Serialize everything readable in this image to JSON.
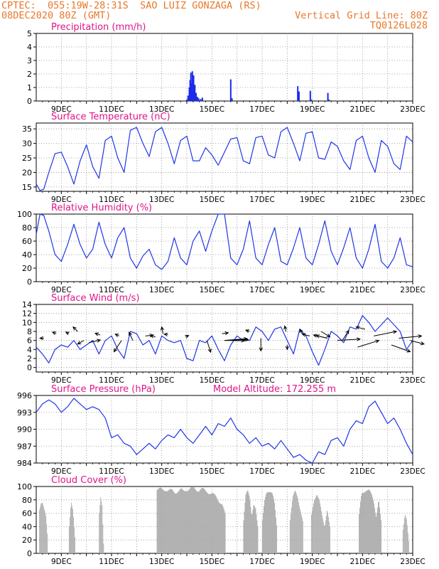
{
  "header": {
    "line1_left": "CPTEC:  055:19W-28:31S  SAO LUIZ GONZAGA (RS)",
    "line2_left": "08DEC2020 80Z (GMT)",
    "line2_right": "Vertical Grid Line: 80Z",
    "line3_right": "TQ0126L028"
  },
  "colors": {
    "header": "#e8782a",
    "title": "#e0158a",
    "line": "#2036e6",
    "bar": "#1a2ae8",
    "cloud": "#aaaaaa",
    "grid": "#888888"
  },
  "chart_data": [
    {
      "id": "precip",
      "type": "bar",
      "title": "Precipitation (mm/h)",
      "ylim": [
        0,
        5
      ],
      "yticks": [
        0,
        1,
        2,
        3,
        4,
        5
      ],
      "xticks": [
        "9DEC",
        "11DEC",
        "13DEC",
        "15DEC",
        "17DEC",
        "19DEC",
        "21DEC",
        "23DEC"
      ],
      "xlim_day": [
        8.0,
        23.0
      ],
      "x": [
        14.0,
        14.05,
        14.1,
        14.13,
        14.16,
        14.19,
        14.22,
        14.27,
        14.32,
        14.37,
        14.42,
        14.47,
        14.55,
        14.62,
        15.75,
        15.8,
        18.42,
        18.47,
        18.92,
        18.97,
        19.62,
        19.67
      ],
      "values": [
        0.1,
        0.4,
        1.0,
        1.55,
        2.1,
        1.3,
        2.2,
        1.9,
        1.2,
        0.6,
        0.3,
        0.2,
        0.15,
        0.25,
        1.6,
        0.2,
        1.1,
        0.7,
        0.75,
        0.1,
        0.6,
        0.1
      ]
    },
    {
      "id": "temp",
      "type": "line",
      "title": "Surface Temperature (nC)",
      "ylim": [
        13.5,
        37
      ],
      "yticks": [
        15,
        20,
        25,
        30,
        35
      ],
      "xticks": [
        "9DEC",
        "11DEC",
        "13DEC",
        "15DEC",
        "17DEC",
        "19DEC",
        "21DEC",
        "23DEC"
      ],
      "xlim_day": [
        8.0,
        23.0
      ],
      "x": [
        8.0,
        8.15,
        8.3,
        8.5,
        8.75,
        9.0,
        9.25,
        9.5,
        9.75,
        10.0,
        10.25,
        10.5,
        10.75,
        11.0,
        11.25,
        11.5,
        11.75,
        12.0,
        12.25,
        12.5,
        12.75,
        13.0,
        13.25,
        13.5,
        13.75,
        14.0,
        14.25,
        14.5,
        14.75,
        15.0,
        15.25,
        15.5,
        15.75,
        16.0,
        16.25,
        16.5,
        16.75,
        17.0,
        17.25,
        17.5,
        17.75,
        18.0,
        18.25,
        18.5,
        18.75,
        19.0,
        19.25,
        19.5,
        19.75,
        20.0,
        20.25,
        20.5,
        20.75,
        21.0,
        21.25,
        21.5,
        21.75,
        22.0,
        22.25,
        22.5,
        22.75,
        23.0
      ],
      "values": [
        16,
        13.8,
        14.2,
        20,
        26.5,
        27,
        22,
        16,
        24,
        29.5,
        22,
        18,
        31,
        32.5,
        25,
        20,
        34.5,
        35.5,
        30,
        25.5,
        34,
        35.5,
        30,
        23,
        31,
        32.5,
        24,
        24,
        28.5,
        26,
        22.5,
        27,
        31.5,
        32,
        24,
        23,
        32,
        32.5,
        26,
        25,
        34,
        35.5,
        30,
        24,
        33.5,
        34,
        25,
        24.5,
        30.5,
        29,
        24,
        21,
        31,
        32.5,
        25,
        20,
        31,
        29,
        23,
        21,
        32.5,
        30.5
      ]
    },
    {
      "id": "rh",
      "type": "line",
      "title": "Relative Humidity (%)",
      "ylim": [
        0,
        100
      ],
      "yticks": [
        0,
        20,
        40,
        60,
        80,
        100
      ],
      "xticks": [
        "9DEC",
        "11DEC",
        "13DEC",
        "15DEC",
        "17DEC",
        "19DEC",
        "21DEC",
        "23DEC"
      ],
      "xlim_day": [
        8.0,
        23.0
      ],
      "x": [
        8.0,
        8.15,
        8.3,
        8.5,
        8.75,
        9.0,
        9.25,
        9.5,
        9.75,
        10.0,
        10.25,
        10.5,
        10.75,
        11.0,
        11.25,
        11.5,
        11.75,
        12.0,
        12.25,
        12.5,
        12.75,
        13.0,
        13.25,
        13.5,
        13.75,
        14.0,
        14.25,
        14.5,
        14.75,
        15.0,
        15.25,
        15.5,
        15.75,
        16.0,
        16.25,
        16.5,
        16.75,
        17.0,
        17.25,
        17.5,
        17.75,
        18.0,
        18.25,
        18.5,
        18.75,
        19.0,
        19.25,
        19.5,
        19.75,
        20.0,
        20.25,
        20.5,
        20.75,
        21.0,
        21.25,
        21.5,
        21.75,
        22.0,
        22.25,
        22.5,
        22.75,
        23.0
      ],
      "values": [
        70,
        100,
        98,
        75,
        40,
        30,
        55,
        85,
        55,
        35,
        48,
        88,
        55,
        35,
        65,
        80,
        35,
        20,
        38,
        48,
        25,
        18,
        30,
        65,
        35,
        25,
        60,
        75,
        45,
        75,
        100,
        100,
        35,
        25,
        48,
        90,
        35,
        25,
        55,
        80,
        30,
        25,
        50,
        80,
        35,
        25,
        55,
        90,
        45,
        25,
        50,
        80,
        35,
        20,
        48,
        85,
        30,
        20,
        35,
        65,
        25,
        22
      ]
    },
    {
      "id": "wind",
      "type": "line",
      "title": "Surface Wind (m/s)",
      "ylim": [
        -1,
        14
      ],
      "yticks": [
        0,
        2,
        4,
        6,
        8,
        10,
        12,
        14
      ],
      "xticks": [
        "9DEC",
        "11DEC",
        "13DEC",
        "15DEC",
        "17DEC",
        "19DEC",
        "21DEC",
        "23DEC"
      ],
      "xlim_day": [
        8.0,
        23.0
      ],
      "x": [
        8.0,
        8.25,
        8.5,
        8.75,
        9.0,
        9.25,
        9.5,
        9.75,
        10.0,
        10.25,
        10.5,
        10.75,
        11.0,
        11.25,
        11.5,
        11.75,
        12.0,
        12.25,
        12.5,
        12.75,
        13.0,
        13.25,
        13.5,
        13.75,
        14.0,
        14.25,
        14.5,
        14.75,
        15.0,
        15.25,
        15.5,
        15.75,
        16.0,
        16.25,
        16.5,
        16.75,
        17.0,
        17.25,
        17.5,
        17.75,
        18.0,
        18.25,
        18.5,
        18.75,
        19.0,
        19.25,
        19.5,
        19.75,
        20.0,
        20.25,
        20.5,
        20.75,
        21.0,
        21.25,
        21.5,
        21.75,
        22.0,
        22.25,
        22.5,
        22.75,
        23.0
      ],
      "values": [
        4.5,
        3,
        1,
        4,
        5,
        4.5,
        6,
        4,
        5,
        6,
        3,
        6,
        7,
        4,
        2,
        8,
        7.5,
        5,
        6,
        3,
        7,
        6,
        5.5,
        6,
        2,
        1.5,
        6,
        5.5,
        7,
        4,
        1.5,
        5,
        7,
        6,
        6,
        9,
        8,
        6,
        8.5,
        9,
        6,
        3,
        8.5,
        7,
        3.5,
        0.5,
        4,
        8,
        7,
        5.5,
        9,
        8.5,
        11.5,
        10,
        8,
        9.5,
        11,
        9.5,
        8,
        4,
        6
      ]
    },
    {
      "id": "pressure",
      "type": "line",
      "title": "Surface Pressure (hPa)",
      "annotation": "Model Altitude: 172.255 m",
      "ylim": [
        984,
        996
      ],
      "yticks": [
        984,
        987,
        990,
        993,
        996
      ],
      "xticks": [
        "9DEC",
        "11DEC",
        "13DEC",
        "15DEC",
        "17DEC",
        "19DEC",
        "21DEC",
        "23DEC"
      ],
      "xlim_day": [
        8.0,
        23.0
      ],
      "x": [
        8.0,
        8.25,
        8.5,
        8.75,
        9.0,
        9.25,
        9.5,
        9.75,
        10.0,
        10.25,
        10.5,
        10.75,
        11.0,
        11.25,
        11.5,
        11.75,
        12.0,
        12.25,
        12.5,
        12.75,
        13.0,
        13.25,
        13.5,
        13.75,
        14.0,
        14.25,
        14.5,
        14.75,
        15.0,
        15.25,
        15.5,
        15.75,
        16.0,
        16.25,
        16.5,
        16.75,
        17.0,
        17.25,
        17.5,
        17.75,
        18.0,
        18.25,
        18.5,
        18.75,
        19.0,
        19.25,
        19.5,
        19.75,
        20.0,
        20.25,
        20.5,
        20.75,
        21.0,
        21.25,
        21.5,
        21.75,
        22.0,
        22.25,
        22.5,
        22.75,
        23.0
      ],
      "values": [
        993,
        994.5,
        995.2,
        994.5,
        993,
        994,
        995.5,
        994.5,
        993.5,
        994,
        993.5,
        992,
        988.5,
        989,
        987.5,
        987,
        985.5,
        986.5,
        987.5,
        986.5,
        988,
        989,
        988.5,
        990,
        988.5,
        987.5,
        989,
        990.5,
        989,
        991,
        990.5,
        992,
        990,
        989,
        987.5,
        988.5,
        987,
        987.5,
        986.5,
        988,
        986.5,
        985,
        985.5,
        984.5,
        984,
        986,
        985.5,
        988,
        988.5,
        987,
        990,
        991.5,
        991,
        994,
        995,
        993,
        991,
        992,
        990,
        987.5,
        985.5
      ]
    },
    {
      "id": "cloud",
      "type": "bar",
      "title": "Cloud Cover (%)",
      "ylim": [
        0,
        100
      ],
      "yticks": [
        0,
        20,
        40,
        60,
        80,
        100
      ],
      "xticks": [
        "9DEC",
        "11DEC",
        "13DEC",
        "15DEC",
        "17DEC",
        "19DEC",
        "21DEC",
        "23DEC"
      ],
      "xlim_day": [
        8.0,
        23.0
      ],
      "segments": [
        {
          "from": 8.12,
          "to": 8.45,
          "values": [
            70,
            80,
            82,
            75,
            65,
            55,
            30
          ]
        },
        {
          "from": 9.3,
          "to": 9.55,
          "values": [
            40,
            80,
            70,
            30
          ]
        },
        {
          "from": 10.5,
          "to": 10.7,
          "values": [
            60,
            85,
            75,
            20
          ]
        },
        {
          "from": 12.8,
          "to": 15.55,
          "values": [
            100,
            99,
            97,
            99,
            98,
            96,
            94,
            97,
            98,
            95,
            99,
            100,
            100,
            99,
            98,
            99,
            97,
            96,
            93,
            90,
            88,
            82,
            75,
            60
          ]
        },
        {
          "from": 16.25,
          "to": 16.85,
          "values": [
            55,
            90,
            95,
            85,
            60,
            80,
            70,
            40
          ]
        },
        {
          "from": 17.0,
          "to": 17.6,
          "values": [
            50,
            80,
            95,
            98,
            96,
            90,
            75,
            45
          ]
        },
        {
          "from": 18.1,
          "to": 18.65,
          "values": [
            55,
            85,
            95,
            88,
            70,
            50
          ]
        },
        {
          "from": 18.95,
          "to": 19.7,
          "values": [
            60,
            85,
            92,
            80,
            60,
            45,
            70,
            40
          ]
        },
        {
          "from": 20.85,
          "to": 21.75,
          "values": [
            60,
            90,
            95,
            100,
            98,
            90,
            80,
            60,
            85,
            50
          ]
        },
        {
          "from": 22.6,
          "to": 22.85,
          "values": [
            40,
            60,
            50,
            20
          ]
        }
      ]
    }
  ],
  "wind_vectors": {
    "description": "Wind direction arrows overlaid on Surface Wind panel (arrow tip in direction of wind)",
    "vectors": [
      {
        "day": 8.3,
        "val": 6.5,
        "dx": -0.15,
        "dy": 0.0
      },
      {
        "day": 8.8,
        "val": 7.5,
        "dx": -0.15,
        "dy": 0.35
      },
      {
        "day": 9.3,
        "val": 7.5,
        "dx": -0.12,
        "dy": 0.35
      },
      {
        "day": 9.65,
        "val": 8.0,
        "dx": -0.18,
        "dy": 1.0
      },
      {
        "day": 9.9,
        "val": 6.0,
        "dx": -0.25,
        "dy": -0.8
      },
      {
        "day": 10.1,
        "val": 5.5,
        "dx": 0.45,
        "dy": 0.6
      },
      {
        "day": 10.55,
        "val": 7.2,
        "dx": -0.2,
        "dy": 0.4
      },
      {
        "day": 11.3,
        "val": 7.0,
        "dx": -0.15,
        "dy": 0.4
      },
      {
        "day": 11.4,
        "val": 6.0,
        "dx": -0.3,
        "dy": -2.5
      },
      {
        "day": 11.85,
        "val": 6.0,
        "dx": -0.15,
        "dy": 1.8
      },
      {
        "day": 12.35,
        "val": 7.0,
        "dx": 0.3,
        "dy": 0.2
      },
      {
        "day": 12.75,
        "val": 6.8,
        "dx": -0.2,
        "dy": 0.3
      },
      {
        "day": 13.05,
        "val": 7.5,
        "dx": -0.05,
        "dy": 1.5
      },
      {
        "day": 13.25,
        "val": 7.3,
        "dx": -0.15,
        "dy": 0.1
      },
      {
        "day": 13.95,
        "val": 6.8,
        "dx": 0.12,
        "dy": 0.3
      },
      {
        "day": 14.8,
        "val": 6.0,
        "dx": 0.15,
        "dy": -2.6
      },
      {
        "day": 15.4,
        "val": 7.5,
        "dx": 0.25,
        "dy": 0.2
      },
      {
        "day": 15.5,
        "val": 6.0,
        "dx": 0.9,
        "dy": 0.4
      },
      {
        "day": 15.5,
        "val": 6.0,
        "dx": 0.95,
        "dy": 0.2
      },
      {
        "day": 15.5,
        "val": 6.0,
        "dx": 0.8,
        "dy": -0.05
      },
      {
        "day": 16.5,
        "val": 8.0,
        "dx": -0.15,
        "dy": 0.3
      },
      {
        "day": 16.95,
        "val": 6.5,
        "dx": 0.0,
        "dy": -2.8
      },
      {
        "day": 17.95,
        "val": 8.0,
        "dx": -0.05,
        "dy": 1.2
      },
      {
        "day": 18.0,
        "val": 5.0,
        "dx": 0.0,
        "dy": -1.0
      },
      {
        "day": 18.6,
        "val": 7.5,
        "dx": -0.1,
        "dy": 1.0
      },
      {
        "day": 18.9,
        "val": 7.0,
        "dx": -0.3,
        "dy": 0.4
      },
      {
        "day": 19.35,
        "val": 8.0,
        "dx": 0.35,
        "dy": -1.2
      },
      {
        "day": 19.6,
        "val": 6.5,
        "dx": -0.45,
        "dy": 0.6
      },
      {
        "day": 19.6,
        "val": 6.5,
        "dx": -0.55,
        "dy": 0.7
      },
      {
        "day": 20.0,
        "val": 6.0,
        "dx": 0.9,
        "dy": 0.3
      },
      {
        "day": 20.2,
        "val": 6.0,
        "dx": 0.25,
        "dy": 2.2
      },
      {
        "day": 20.8,
        "val": 4.5,
        "dx": 0.85,
        "dy": 1.5
      },
      {
        "day": 21.1,
        "val": 8.5,
        "dx": -0.35,
        "dy": 0.5
      },
      {
        "day": 21.45,
        "val": 7.0,
        "dx": 0.9,
        "dy": 1.0
      },
      {
        "day": 22.15,
        "val": 5.0,
        "dx": 0.75,
        "dy": -1.5
      },
      {
        "day": 22.45,
        "val": 6.5,
        "dx": 0.9,
        "dy": 0.5
      },
      {
        "day": 22.9,
        "val": 6.0,
        "dx": 0.55,
        "dy": -0.8
      }
    ]
  }
}
